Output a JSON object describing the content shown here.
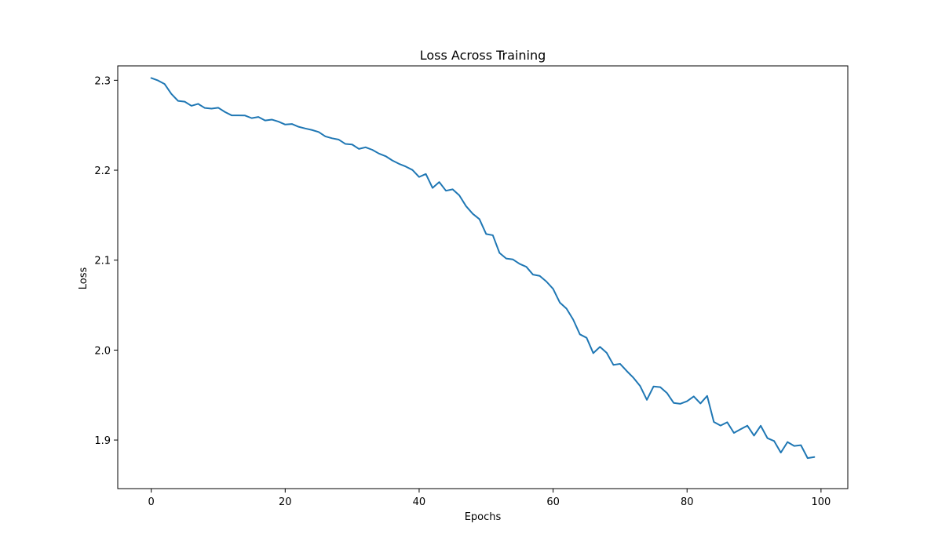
{
  "chart_data": {
    "type": "line",
    "title": "Loss Across Training",
    "xlabel": "Epochs",
    "ylabel": "Loss",
    "xlim": [
      -5,
      104
    ],
    "ylim": [
      1.846,
      2.316
    ],
    "grid": false,
    "legend": "none",
    "x_ticks": [
      0,
      20,
      40,
      60,
      80,
      100
    ],
    "x_tick_labels": [
      "0",
      "20",
      "40",
      "60",
      "80",
      "100"
    ],
    "y_ticks": [
      1.9,
      2.0,
      2.1,
      2.2,
      2.3
    ],
    "y_tick_labels": [
      "1.9",
      "2.0",
      "2.1",
      "2.2",
      "2.3"
    ],
    "series": [
      {
        "color": "#1f77b4",
        "x": [
          0,
          1,
          2,
          3,
          4,
          5,
          6,
          7,
          8,
          9,
          10,
          11,
          12,
          13,
          14,
          15,
          16,
          17,
          18,
          19,
          20,
          21,
          22,
          23,
          24,
          25,
          26,
          27,
          28,
          29,
          30,
          31,
          32,
          33,
          34,
          35,
          36,
          37,
          38,
          39,
          40,
          41,
          42,
          43,
          44,
          45,
          46,
          47,
          48,
          49,
          50,
          51,
          52,
          53,
          54,
          55,
          56,
          57,
          58,
          59,
          60,
          61,
          62,
          63,
          64,
          65,
          66,
          67,
          68,
          69,
          70,
          71,
          72,
          73,
          74,
          75,
          76,
          77,
          78,
          79,
          80,
          81,
          82,
          83,
          84,
          85,
          86,
          87,
          88,
          89,
          90,
          91,
          92,
          93,
          94,
          95,
          96,
          97,
          98,
          99
        ],
        "values": [
          2.3025,
          2.2998,
          2.2958,
          2.2849,
          2.2771,
          2.2762,
          2.2716,
          2.2738,
          2.2692,
          2.2685,
          2.2695,
          2.2648,
          2.261,
          2.261,
          2.2608,
          2.2579,
          2.2592,
          2.2553,
          2.2563,
          2.254,
          2.2508,
          2.2514,
          2.2483,
          2.2464,
          2.2447,
          2.2425,
          2.2376,
          2.2355,
          2.234,
          2.2292,
          2.2286,
          2.2237,
          2.2255,
          2.2227,
          2.2185,
          2.2156,
          2.2108,
          2.2071,
          2.2041,
          2.2003,
          2.1925,
          2.1958,
          2.1803,
          2.1868,
          2.1772,
          2.1788,
          2.172,
          2.1601,
          2.1516,
          2.1456,
          2.1291,
          2.1277,
          2.108,
          2.1018,
          2.1008,
          2.0959,
          2.0926,
          2.0839,
          2.0825,
          2.0762,
          2.0681,
          2.0529,
          2.0461,
          2.0339,
          2.0175,
          2.0137,
          1.9966,
          2.0036,
          1.997,
          1.9836,
          1.9847,
          1.9767,
          1.9692,
          1.96,
          1.9447,
          1.9596,
          1.9588,
          1.9523,
          1.9413,
          1.9403,
          1.9432,
          1.9485,
          1.9407,
          1.9491,
          1.9201,
          1.9161,
          1.9198,
          1.9079,
          1.912,
          1.916,
          1.9049,
          1.9159,
          1.9021,
          1.8989,
          1.886,
          1.8978,
          1.8934,
          1.8943,
          1.8799,
          1.8811
        ]
      }
    ]
  }
}
